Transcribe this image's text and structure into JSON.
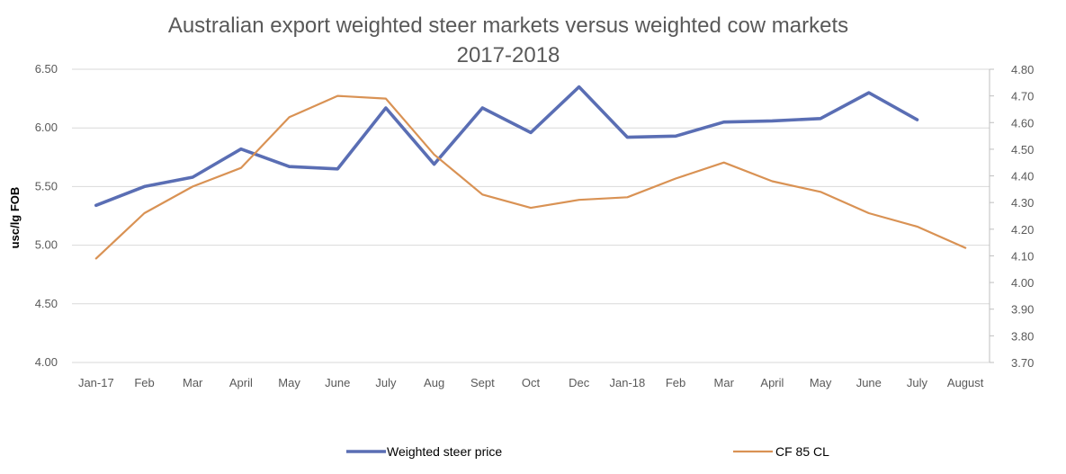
{
  "chart_data": {
    "type": "line",
    "title": "Australian export weighted steer markets versus weighted cow markets",
    "subtitle": "2017-2018",
    "ylabel": "usc/lg FOB",
    "categories": [
      "Jan-17",
      "Feb",
      "Mar",
      "April",
      "May",
      "June",
      "July",
      "Aug",
      "Sept",
      "Oct",
      "Dec",
      "Jan-18",
      "Feb",
      "Mar",
      "April",
      "May",
      "June",
      "July",
      "August"
    ],
    "y_left": {
      "min": 4.0,
      "max": 6.5,
      "ticks": [
        "4.00",
        "4.50",
        "5.00",
        "5.50",
        "6.00",
        "6.50"
      ]
    },
    "y_right": {
      "min": 3.7,
      "max": 4.8,
      "ticks": [
        "3.70",
        "3.80",
        "3.90",
        "4.00",
        "4.10",
        "4.20",
        "4.30",
        "4.40",
        "4.50",
        "4.60",
        "4.70",
        "4.80"
      ]
    },
    "grid": true,
    "legend_position": "bottom",
    "series": [
      {
        "name": "Weighted steer price",
        "axis": "left",
        "color": "#5A6EB4",
        "values": [
          5.34,
          5.5,
          5.58,
          5.82,
          5.67,
          5.65,
          6.17,
          5.69,
          6.17,
          5.96,
          6.35,
          5.92,
          5.93,
          6.05,
          6.06,
          6.08,
          6.3,
          6.07,
          null
        ]
      },
      {
        "name": "CF 85 CL",
        "axis": "right",
        "color": "#D99254",
        "values": [
          4.09,
          4.26,
          4.36,
          4.43,
          4.62,
          4.7,
          4.69,
          4.48,
          4.33,
          4.28,
          4.31,
          4.32,
          4.39,
          4.45,
          4.38,
          4.34,
          4.26,
          4.21,
          4.13
        ]
      }
    ]
  }
}
